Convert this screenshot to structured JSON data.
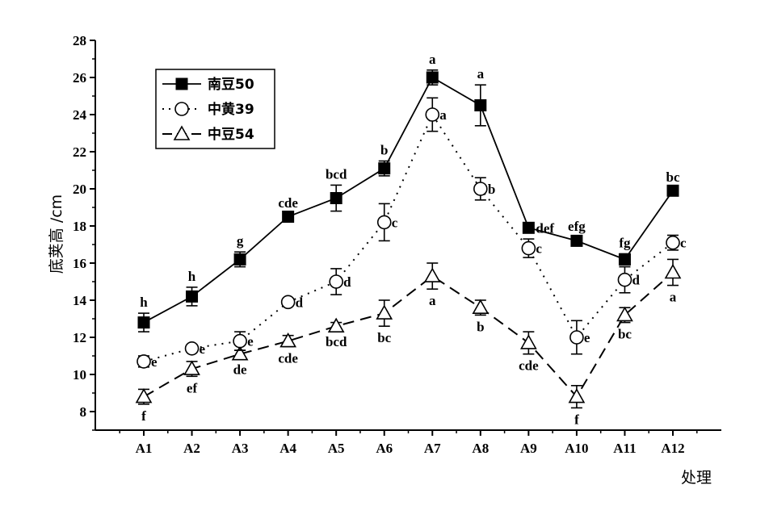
{
  "chart_data": {
    "type": "line",
    "xlabel": "处理",
    "ylabel": "底荚高 /cm",
    "ylim": [
      7,
      28
    ],
    "yticks": [
      8,
      10,
      12,
      14,
      16,
      18,
      20,
      22,
      24,
      26,
      28
    ],
    "categories": [
      "A1",
      "A2",
      "A3",
      "A4",
      "A5",
      "A6",
      "A7",
      "A8",
      "A9",
      "A10",
      "A11",
      "A12"
    ],
    "legend_position": "top-left",
    "series": [
      {
        "name": "南豆50",
        "marker": "filled-square",
        "line": "solid",
        "values": [
          12.8,
          14.2,
          16.2,
          18.5,
          19.5,
          21.1,
          26.0,
          24.5,
          17.9,
          17.2,
          16.2,
          19.9
        ],
        "errors": [
          0.5,
          0.5,
          0.4,
          0.15,
          0.7,
          0.4,
          0.4,
          1.1,
          0.2,
          0.2,
          0.3,
          0.15
        ],
        "sig": [
          "h",
          "h",
          "g",
          "cde",
          "bcd",
          "b",
          "a",
          "a",
          "def",
          "efg",
          "fg",
          "bc"
        ],
        "sig_pos": [
          "above",
          "above",
          "above",
          "above",
          "above",
          "above",
          "above",
          "above",
          "right",
          "above",
          "above",
          "above"
        ]
      },
      {
        "name": "中黄39",
        "marker": "open-circle",
        "line": "dotted",
        "values": [
          10.7,
          11.4,
          11.8,
          13.9,
          15.0,
          18.2,
          24.0,
          20.0,
          16.8,
          12.0,
          15.1,
          17.1
        ],
        "errors": [
          0.3,
          0.2,
          0.5,
          0.2,
          0.7,
          1.0,
          0.9,
          0.6,
          0.5,
          0.9,
          0.7,
          0.4
        ],
        "sig": [
          "e",
          "e",
          "e",
          "d",
          "d",
          "c",
          "a",
          "b",
          "c",
          "e",
          "d",
          "c"
        ],
        "sig_pos": [
          "right",
          "right",
          "right",
          "right",
          "right",
          "right",
          "right",
          "right",
          "right",
          "right",
          "right",
          "right"
        ]
      },
      {
        "name": "中豆54",
        "marker": "open-triangle",
        "line": "dashed",
        "values": [
          8.8,
          10.3,
          11.1,
          11.8,
          12.6,
          13.3,
          15.3,
          13.6,
          11.7,
          8.8,
          13.2,
          15.5
        ],
        "errors": [
          0.4,
          0.4,
          0.2,
          0.3,
          0.2,
          0.7,
          0.7,
          0.4,
          0.6,
          0.6,
          0.4,
          0.7
        ],
        "sig": [
          "f",
          "ef",
          "de",
          "cde",
          "bcd",
          "bc",
          "a",
          "b",
          "cde",
          "f",
          "bc",
          "a"
        ],
        "sig_pos": [
          "below",
          "below",
          "below",
          "below",
          "below",
          "below",
          "below",
          "below",
          "below",
          "below",
          "below",
          "below"
        ]
      }
    ]
  }
}
